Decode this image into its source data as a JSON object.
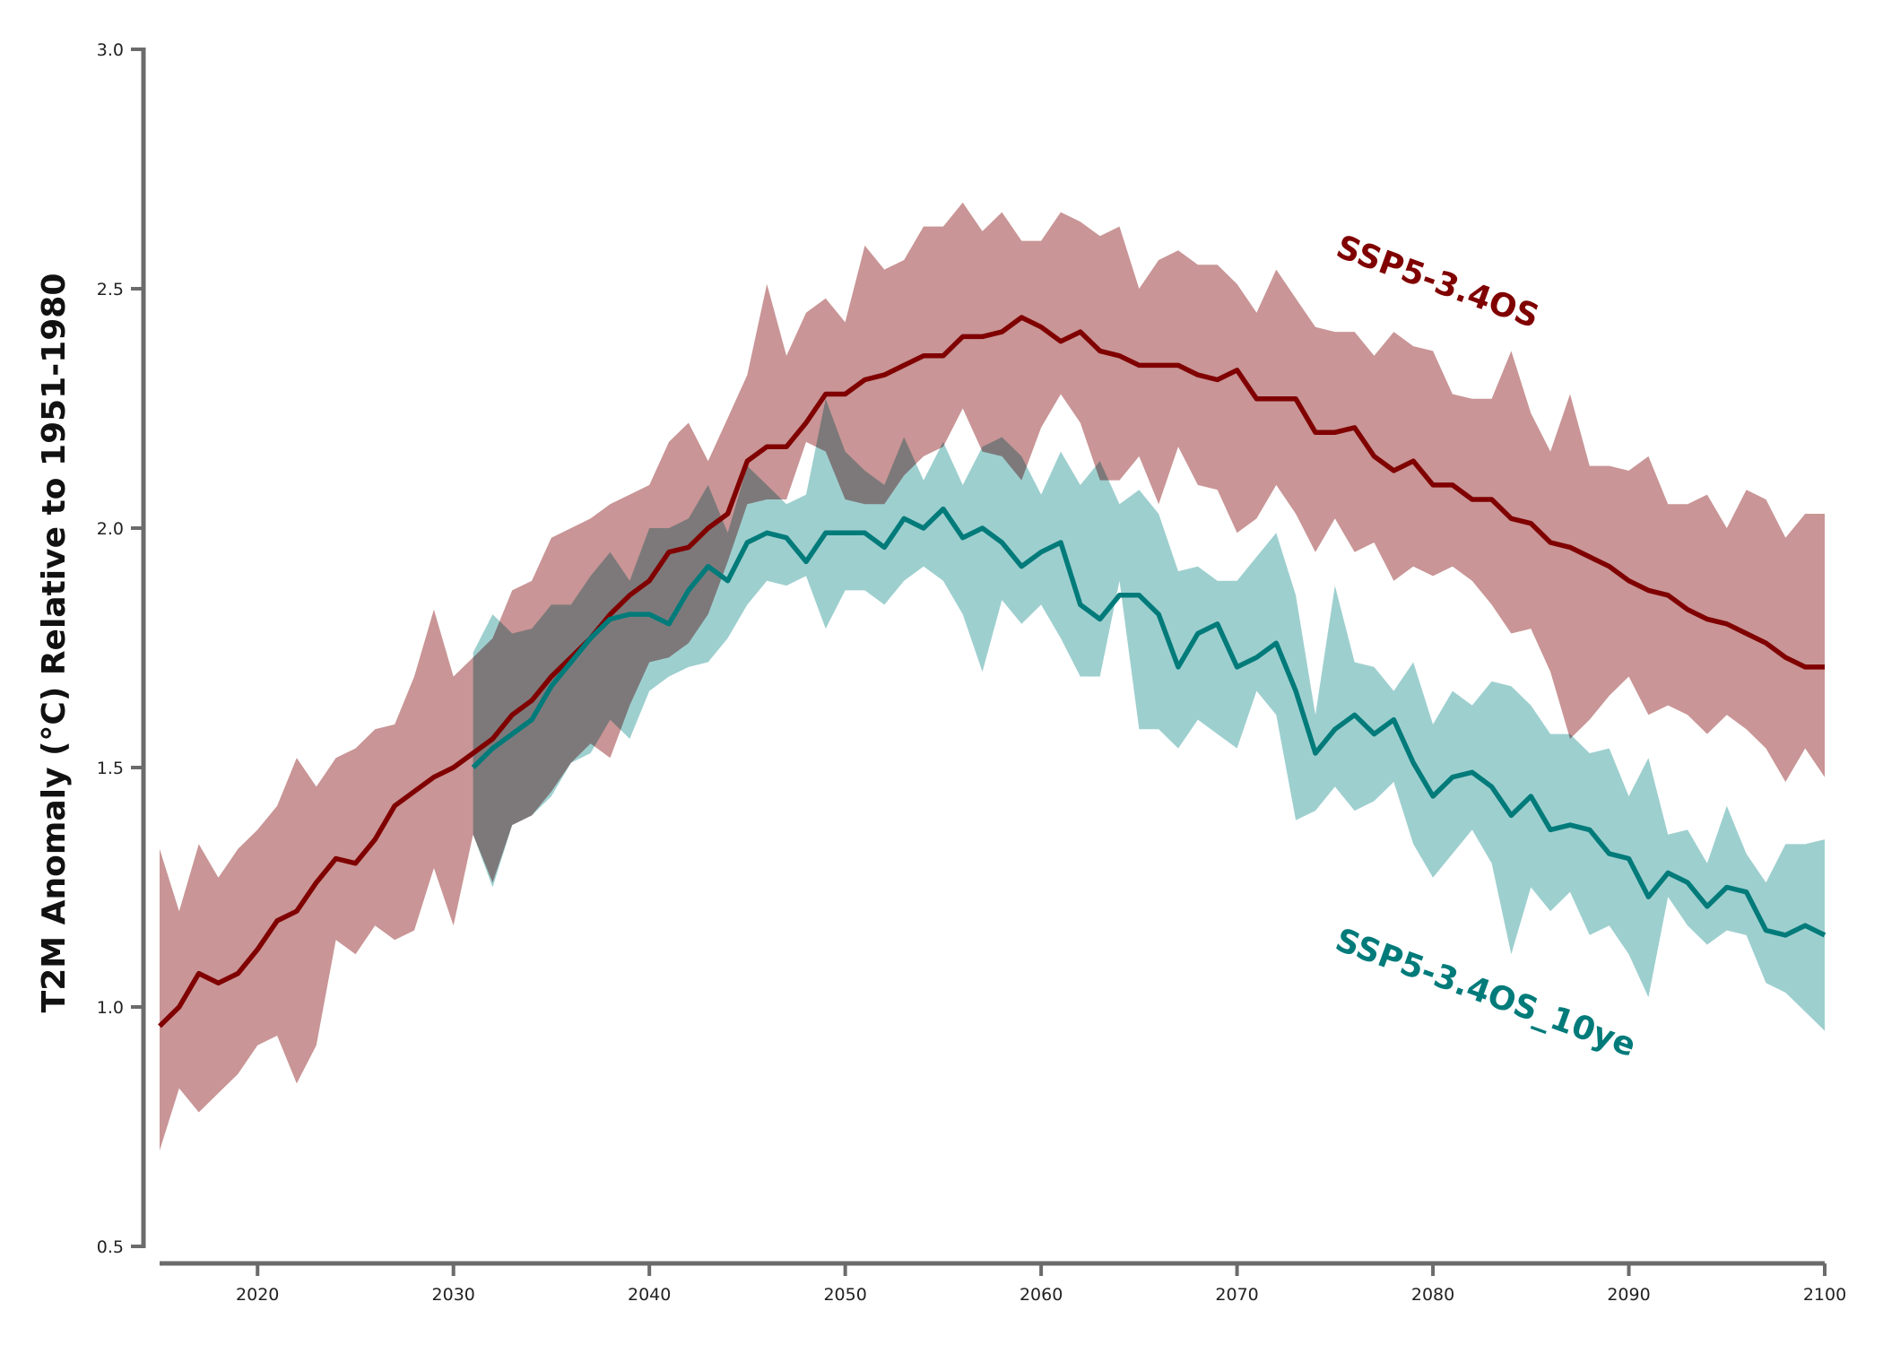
{
  "chart_data": {
    "type": "line",
    "title": "",
    "xlabel": "",
    "ylabel": "T2M Anomaly (°C) Relative to 1951-1980",
    "xlim": [
      2015,
      2100
    ],
    "ylim": [
      0.5,
      3.0
    ],
    "xticks": [
      2020,
      2030,
      2040,
      2050,
      2060,
      2070,
      2080,
      2090,
      2100
    ],
    "xtick_labels": [
      "2020",
      "2030",
      "2040",
      "2050",
      "2060",
      "2070",
      "2080",
      "2090",
      "2100"
    ],
    "yticks": [
      0.5,
      1.0,
      1.5,
      2.0,
      2.5,
      3.0
    ],
    "ytick_labels": [
      "0.5",
      "1.0",
      "1.5",
      "2.0",
      "2.5",
      "3.0"
    ],
    "grid": false,
    "legend": "inline labels",
    "series": [
      {
        "name": "SSP5-3.4OS",
        "color": "#800000",
        "band_color": "#c99596",
        "x": [
          2015,
          2016,
          2017,
          2018,
          2019,
          2020,
          2021,
          2022,
          2023,
          2024,
          2025,
          2026,
          2027,
          2028,
          2029,
          2030,
          2031,
          2032,
          2033,
          2034,
          2035,
          2036,
          2037,
          2038,
          2039,
          2040,
          2041,
          2042,
          2043,
          2044,
          2045,
          2046,
          2047,
          2048,
          2049,
          2050,
          2051,
          2052,
          2053,
          2054,
          2055,
          2056,
          2057,
          2058,
          2059,
          2060,
          2061,
          2062,
          2063,
          2064,
          2065,
          2066,
          2067,
          2068,
          2069,
          2070,
          2071,
          2072,
          2073,
          2074,
          2075,
          2076,
          2077,
          2078,
          2079,
          2080,
          2081,
          2082,
          2083,
          2084,
          2085,
          2086,
          2087,
          2088,
          2089,
          2090,
          2091,
          2092,
          2093,
          2094,
          2095,
          2096,
          2097,
          2098,
          2099,
          2100
        ],
        "mean": [
          0.96,
          1.0,
          1.07,
          1.05,
          1.07,
          1.12,
          1.18,
          1.2,
          1.26,
          1.31,
          1.3,
          1.35,
          1.42,
          1.45,
          1.48,
          1.5,
          1.53,
          1.56,
          1.61,
          1.64,
          1.69,
          1.73,
          1.77,
          1.82,
          1.86,
          1.89,
          1.95,
          1.96,
          2.0,
          2.03,
          2.14,
          2.17,
          2.17,
          2.22,
          2.28,
          2.28,
          2.31,
          2.32,
          2.34,
          2.36,
          2.36,
          2.4,
          2.4,
          2.41,
          2.44,
          2.42,
          2.39,
          2.41,
          2.37,
          2.36,
          2.34,
          2.34,
          2.34,
          2.32,
          2.31,
          2.33,
          2.27,
          2.27,
          2.27,
          2.2,
          2.2,
          2.21,
          2.15,
          2.12,
          2.14,
          2.09,
          2.09,
          2.06,
          2.06,
          2.02,
          2.01,
          1.97,
          1.96,
          1.94,
          1.92,
          1.89,
          1.87,
          1.86,
          1.83,
          1.81,
          1.8,
          1.78,
          1.76,
          1.73,
          1.71,
          1.71
        ],
        "upper": [
          1.33,
          1.2,
          1.34,
          1.27,
          1.33,
          1.37,
          1.42,
          1.52,
          1.46,
          1.52,
          1.54,
          1.58,
          1.59,
          1.69,
          1.83,
          1.69,
          1.73,
          1.77,
          1.87,
          1.89,
          1.98,
          2.0,
          2.02,
          2.05,
          2.07,
          2.09,
          2.18,
          2.22,
          2.14,
          2.23,
          2.32,
          2.51,
          2.36,
          2.45,
          2.48,
          2.43,
          2.59,
          2.54,
          2.56,
          2.63,
          2.63,
          2.68,
          2.62,
          2.66,
          2.6,
          2.6,
          2.66,
          2.64,
          2.61,
          2.63,
          2.5,
          2.56,
          2.58,
          2.55,
          2.55,
          2.51,
          2.45,
          2.54,
          2.48,
          2.42,
          2.41,
          2.41,
          2.36,
          2.41,
          2.38,
          2.37,
          2.28,
          2.27,
          2.27,
          2.37,
          2.24,
          2.16,
          2.28,
          2.13,
          2.13,
          2.12,
          2.15,
          2.05,
          2.05,
          2.07,
          2.0,
          2.08,
          2.06,
          1.98,
          2.03,
          2.03
        ],
        "lower": [
          0.7,
          0.83,
          0.78,
          0.82,
          0.86,
          0.92,
          0.94,
          0.84,
          0.92,
          1.14,
          1.11,
          1.17,
          1.14,
          1.16,
          1.29,
          1.17,
          1.36,
          1.26,
          1.38,
          1.4,
          1.45,
          1.51,
          1.55,
          1.52,
          1.63,
          1.72,
          1.73,
          1.76,
          1.82,
          1.93,
          2.05,
          2.06,
          2.06,
          2.18,
          2.16,
          2.06,
          2.05,
          2.05,
          2.11,
          2.15,
          2.17,
          2.25,
          2.16,
          2.15,
          2.1,
          2.21,
          2.28,
          2.22,
          2.1,
          2.1,
          2.15,
          2.05,
          2.17,
          2.09,
          2.08,
          1.99,
          2.02,
          2.09,
          2.03,
          1.95,
          2.02,
          1.95,
          1.97,
          1.89,
          1.92,
          1.9,
          1.92,
          1.89,
          1.84,
          1.78,
          1.79,
          1.7,
          1.56,
          1.6,
          1.65,
          1.69,
          1.61,
          1.63,
          1.61,
          1.57,
          1.61,
          1.58,
          1.54,
          1.47,
          1.54,
          1.48
        ]
      },
      {
        "name": "SSP5-3.4OS_10ye",
        "color": "#007b7a",
        "band_color": "#99cccc",
        "x": [
          2031,
          2032,
          2033,
          2034,
          2035,
          2036,
          2037,
          2038,
          2039,
          2040,
          2041,
          2042,
          2043,
          2044,
          2045,
          2046,
          2047,
          2048,
          2049,
          2050,
          2051,
          2052,
          2053,
          2054,
          2055,
          2056,
          2057,
          2058,
          2059,
          2060,
          2061,
          2062,
          2063,
          2064,
          2065,
          2066,
          2067,
          2068,
          2069,
          2070,
          2071,
          2072,
          2073,
          2074,
          2075,
          2076,
          2077,
          2078,
          2079,
          2080,
          2081,
          2082,
          2083,
          2084,
          2085,
          2086,
          2087,
          2088,
          2089,
          2090,
          2091,
          2092,
          2093,
          2094,
          2095,
          2096,
          2097,
          2098,
          2099,
          2100
        ],
        "mean": [
          1.5,
          1.54,
          1.57,
          1.6,
          1.67,
          1.72,
          1.77,
          1.81,
          1.82,
          1.82,
          1.8,
          1.87,
          1.92,
          1.89,
          1.97,
          1.99,
          1.98,
          1.93,
          1.99,
          1.99,
          1.99,
          1.96,
          2.02,
          2.0,
          2.04,
          1.98,
          2.0,
          1.97,
          1.92,
          1.95,
          1.97,
          1.84,
          1.81,
          1.86,
          1.86,
          1.82,
          1.71,
          1.78,
          1.8,
          1.71,
          1.73,
          1.76,
          1.66,
          1.53,
          1.58,
          1.61,
          1.57,
          1.6,
          1.51,
          1.44,
          1.48,
          1.49,
          1.46,
          1.4,
          1.44,
          1.37,
          1.38,
          1.37,
          1.32,
          1.31,
          1.23,
          1.28,
          1.26,
          1.21,
          1.25,
          1.24,
          1.16,
          1.15,
          1.17,
          1.15
        ],
        "upper": [
          1.74,
          1.82,
          1.78,
          1.79,
          1.84,
          1.84,
          1.9,
          1.95,
          1.89,
          2.0,
          2.0,
          2.02,
          2.09,
          1.99,
          2.13,
          2.09,
          2.05,
          2.07,
          2.27,
          2.16,
          2.12,
          2.09,
          2.19,
          2.1,
          2.18,
          2.09,
          2.17,
          2.19,
          2.15,
          2.07,
          2.16,
          2.09,
          2.14,
          2.05,
          2.08,
          2.03,
          1.91,
          1.92,
          1.89,
          1.89,
          1.94,
          1.99,
          1.86,
          1.61,
          1.88,
          1.72,
          1.71,
          1.66,
          1.72,
          1.59,
          1.66,
          1.63,
          1.68,
          1.67,
          1.63,
          1.57,
          1.57,
          1.53,
          1.54,
          1.44,
          1.52,
          1.36,
          1.37,
          1.3,
          1.42,
          1.32,
          1.26,
          1.34,
          1.34,
          1.35
        ],
        "lower": [
          1.36,
          1.25,
          1.38,
          1.4,
          1.44,
          1.51,
          1.53,
          1.6,
          1.56,
          1.66,
          1.69,
          1.71,
          1.72,
          1.77,
          1.84,
          1.89,
          1.88,
          1.9,
          1.79,
          1.87,
          1.87,
          1.84,
          1.89,
          1.92,
          1.89,
          1.82,
          1.7,
          1.85,
          1.8,
          1.84,
          1.77,
          1.69,
          1.69,
          1.89,
          1.58,
          1.58,
          1.54,
          1.6,
          1.57,
          1.54,
          1.66,
          1.61,
          1.39,
          1.41,
          1.46,
          1.41,
          1.43,
          1.47,
          1.34,
          1.27,
          1.32,
          1.37,
          1.3,
          1.11,
          1.25,
          1.2,
          1.24,
          1.15,
          1.17,
          1.11,
          1.02,
          1.23,
          1.17,
          1.13,
          1.16,
          1.15,
          1.05,
          1.03,
          0.99,
          0.95
        ]
      }
    ]
  }
}
